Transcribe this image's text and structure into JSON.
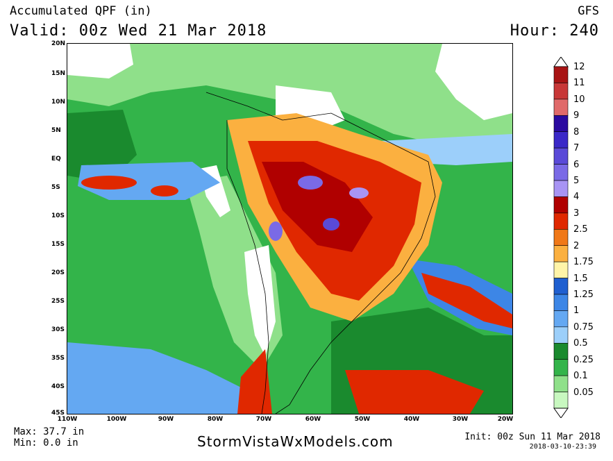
{
  "header": {
    "title": "Accumulated QPF (in)",
    "valid": "Valid: 00z Wed 21 Mar 2018",
    "model": "GFS",
    "hour": "Hour: 240"
  },
  "map": {
    "lat_labels": [
      "20N",
      "15N",
      "10N",
      "5N",
      "EQ",
      "5S",
      "10S",
      "15S",
      "20S",
      "25S",
      "30S",
      "35S",
      "40S",
      "45S"
    ],
    "lon_labels": [
      "110W",
      "100W",
      "90W",
      "80W",
      "70W",
      "60W",
      "50W",
      "40W",
      "30W",
      "20W"
    ],
    "background_colors": {
      "land_dry": "#ffffff",
      "light_green": "#8fe08a",
      "green": "#33b44a",
      "dark_green": "#1a8a2e"
    }
  },
  "legend": {
    "levels": [
      {
        "label": "12",
        "color": "#a81414"
      },
      {
        "label": "11",
        "color": "#c83838"
      },
      {
        "label": "10",
        "color": "#e06a6a"
      },
      {
        "label": "9",
        "color": "#2a0aa0"
      },
      {
        "label": "8",
        "color": "#3a28c8"
      },
      {
        "label": "7",
        "color": "#5a4ad8"
      },
      {
        "label": "6",
        "color": "#7a6ae6"
      },
      {
        "label": "5",
        "color": "#a894f4"
      },
      {
        "label": "4",
        "color": "#b00000"
      },
      {
        "label": "3",
        "color": "#e02800"
      },
      {
        "label": "2.5",
        "color": "#f07818"
      },
      {
        "label": "2",
        "color": "#fbb040"
      },
      {
        "label": "1.75",
        "color": "#fff4a8"
      },
      {
        "label": "1.5",
        "color": "#1f5fd0"
      },
      {
        "label": "1.25",
        "color": "#3d86e6"
      },
      {
        "label": "1",
        "color": "#64a8f2"
      },
      {
        "label": "0.75",
        "color": "#9ccffa"
      },
      {
        "label": "0.5",
        "color": "#1a8a2e"
      },
      {
        "label": "0.25",
        "color": "#33b44a"
      },
      {
        "label": "0.1",
        "color": "#8fe08a"
      },
      {
        "label": "0.05",
        "color": "#c8f8c0"
      }
    ]
  },
  "footer": {
    "max": "Max: 37.7 in",
    "min": "Min: 0.0 in",
    "credit": "StormVistaWxModels.com",
    "init": "Init: 00z Sun 11 Mar 2018",
    "stamp": "2018-03-10-23:39"
  }
}
